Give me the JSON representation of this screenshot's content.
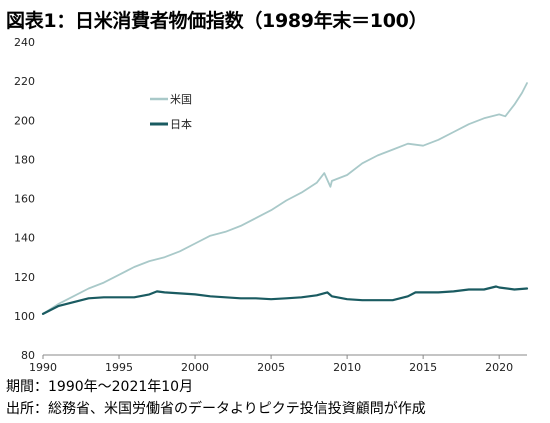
{
  "header": {
    "title": "図表1：日米消費者物価指数（1989年末＝100）"
  },
  "footnotes": {
    "period": "期間：1990年～2021年10月",
    "source": "出所：総務省、米国労働省のデータよりピクテ投信投資顧問が作成"
  },
  "chart_data": {
    "type": "line",
    "title": "図表1：日米消費者物価指数（1989年末＝100）",
    "xlabel": "",
    "ylabel": "",
    "xlim": [
      1990,
      2021.83
    ],
    "ylim": [
      80,
      240
    ],
    "x_ticks": [
      "1990",
      "1995",
      "2000",
      "2005",
      "2010",
      "2015",
      "2020"
    ],
    "y_ticks": [
      "80",
      "100",
      "120",
      "140",
      "160",
      "180",
      "200",
      "220",
      "240"
    ],
    "grid": false,
    "legend_position": "top-left",
    "series": [
      {
        "name": "米国",
        "color": "#a9c9c9",
        "x": [
          1990,
          1991,
          1992,
          1993,
          1994,
          1995,
          1996,
          1997,
          1998,
          1999,
          2000,
          2001,
          2002,
          2003,
          2004,
          2005,
          2006,
          2007,
          2008,
          2008.5,
          2008.9,
          2009,
          2010,
          2011,
          2012,
          2013,
          2014,
          2015,
          2016,
          2017,
          2018,
          2019,
          2020,
          2020.4,
          2021,
          2021.5,
          2021.83
        ],
        "values": [
          101,
          106,
          110,
          114,
          117,
          121,
          125,
          128,
          130,
          133,
          137,
          141,
          143,
          146,
          150,
          154,
          159,
          163,
          168,
          173,
          166,
          169,
          172,
          178,
          182,
          185,
          188,
          187,
          190,
          194,
          198,
          201,
          203,
          202,
          208,
          214,
          219
        ]
      },
      {
        "name": "日本",
        "color": "#1a5b61",
        "x": [
          1990,
          1991,
          1992,
          1993,
          1994,
          1995,
          1996,
          1997,
          1997.5,
          1998,
          1999,
          2000,
          2001,
          2002,
          2003,
          2004,
          2005,
          2006,
          2007,
          2008,
          2008.7,
          2009,
          2010,
          2011,
          2012,
          2013,
          2014,
          2014.5,
          2015,
          2016,
          2017,
          2018,
          2019,
          2019.8,
          2020,
          2021,
          2021.83
        ],
        "values": [
          101,
          105,
          107,
          109,
          109.5,
          109.5,
          109.5,
          111,
          112.5,
          112,
          111.5,
          111,
          110,
          109.5,
          109,
          109,
          108.5,
          109,
          109.5,
          110.5,
          112,
          110,
          108.5,
          108,
          108,
          108,
          110,
          112,
          112,
          112,
          112.5,
          113.5,
          113.5,
          115,
          114.5,
          113.5,
          114
        ]
      }
    ]
  }
}
